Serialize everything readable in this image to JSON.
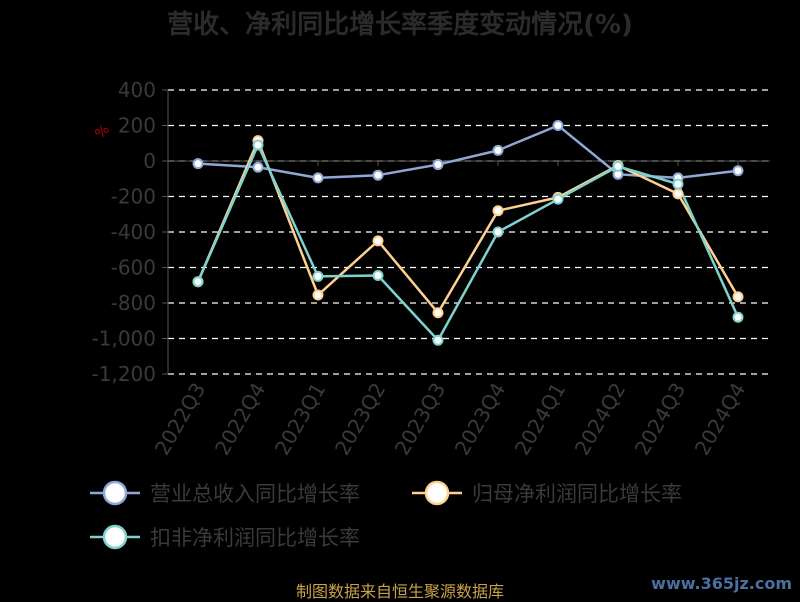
{
  "chart_data": {
    "type": "line",
    "title": "营收、净利同比增长率季度变动情况(%)",
    "unit_label": "%",
    "categories": [
      "2022Q3",
      "2022Q4",
      "2023Q1",
      "2023Q2",
      "2023Q3",
      "2023Q4",
      "2024Q1",
      "2024Q2",
      "2024Q3",
      "2024Q4"
    ],
    "y_ticks": [
      "400",
      "200",
      "0",
      "-200",
      "-400",
      "-600",
      "-800",
      "-1,000",
      "-1,200"
    ],
    "ylim": [
      -1200,
      400
    ],
    "grid": true,
    "legend_position": "bottom",
    "series": [
      {
        "name": "营业总收入同比增长率",
        "color": "#8fa8d8",
        "values": [
          -15,
          -35,
          -95,
          -80,
          -20,
          60,
          200,
          -75,
          -95,
          -55
        ]
      },
      {
        "name": "归母净利润同比增长率",
        "color": "#ffd08f",
        "values": [
          -680,
          115,
          -755,
          -450,
          -855,
          -280,
          -205,
          -25,
          -185,
          -765
        ]
      },
      {
        "name": "扣非净利润同比增长率",
        "color": "#7ed3cf",
        "values": [
          -680,
          90,
          -650,
          -645,
          -1010,
          -400,
          -215,
          -30,
          -130,
          -880
        ]
      }
    ]
  },
  "footer": {
    "source": "制图数据来自恒生聚源数据库",
    "watermark": "www.365jz.com"
  }
}
